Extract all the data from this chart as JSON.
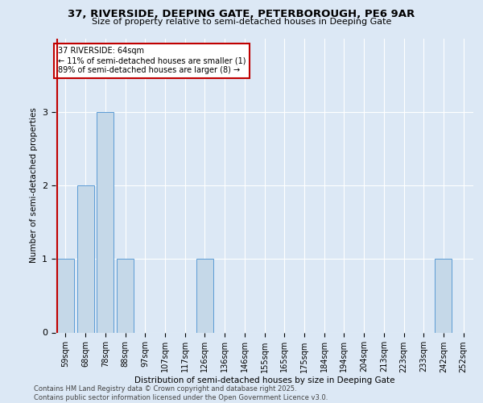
{
  "title_line1": "37, RIVERSIDE, DEEPING GATE, PETERBOROUGH, PE6 9AR",
  "title_line2": "Size of property relative to semi-detached houses in Deeping Gate",
  "xlabel": "Distribution of semi-detached houses by size in Deeping Gate",
  "ylabel": "Number of semi-detached properties",
  "footer_line1": "Contains HM Land Registry data © Crown copyright and database right 2025.",
  "footer_line2": "Contains public sector information licensed under the Open Government Licence v3.0.",
  "categories": [
    "59sqm",
    "68sqm",
    "78sqm",
    "88sqm",
    "97sqm",
    "107sqm",
    "117sqm",
    "126sqm",
    "136sqm",
    "146sqm",
    "155sqm",
    "165sqm",
    "175sqm",
    "184sqm",
    "194sqm",
    "204sqm",
    "213sqm",
    "223sqm",
    "233sqm",
    "242sqm",
    "252sqm"
  ],
  "values": [
    1,
    2,
    3,
    1,
    0,
    0,
    0,
    1,
    0,
    0,
    0,
    0,
    0,
    0,
    0,
    0,
    0,
    0,
    0,
    1,
    0
  ],
  "bar_color": "#c5d8e8",
  "bar_edge_color": "#5b9bd5",
  "highlight_color": "#c00000",
  "annotation_title": "37 RIVERSIDE: 64sqm",
  "annotation_line2": "← 11% of semi-detached houses are smaller (1)",
  "annotation_line3": "89% of semi-detached houses are larger (8) →",
  "annotation_box_color": "#c00000",
  "ylim": [
    0,
    4
  ],
  "yticks": [
    0,
    1,
    2,
    3,
    4
  ],
  "background_color": "#dce8f5",
  "plot_bg_color": "#dce8f5",
  "grid_color": "#ffffff",
  "figsize": [
    6.0,
    5.0
  ],
  "dpi": 100
}
